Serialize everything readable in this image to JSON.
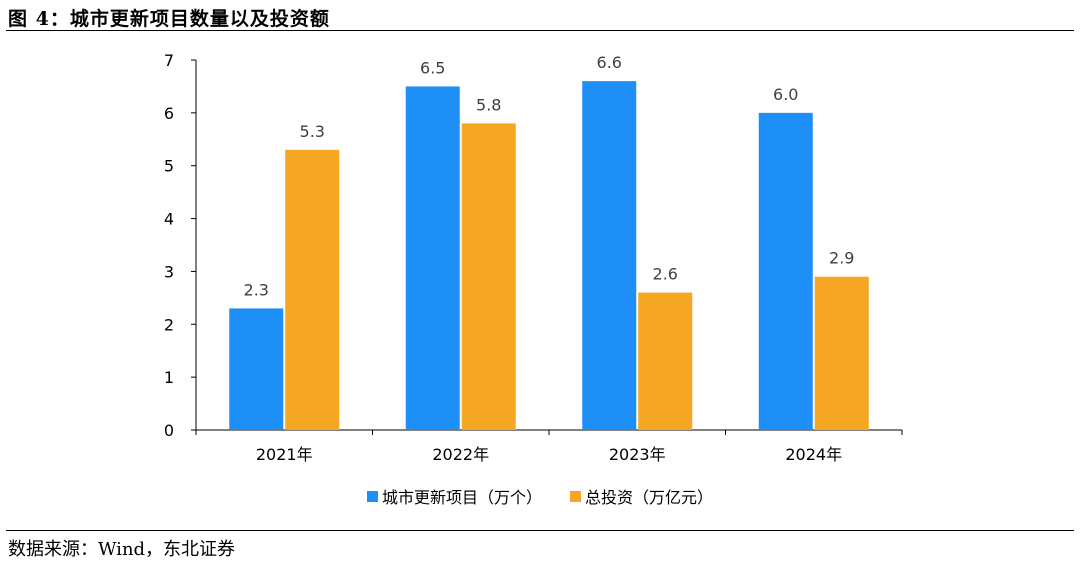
{
  "header": {
    "title": "图 4：城市更新项目数量以及投资额"
  },
  "footer": {
    "source": "数据来源：Wind，东北证券"
  },
  "colors": {
    "series_1": "#1E8FF7",
    "series_2": "#F5A623",
    "axis": "#000000"
  },
  "chart_data": {
    "type": "bar",
    "title": "",
    "xlabel": "",
    "ylabel": "",
    "categories": [
      "2021年",
      "2022年",
      "2023年",
      "2024年"
    ],
    "series": [
      {
        "name": "城市更新项目（万个）",
        "values": [
          2.3,
          6.5,
          6.6,
          6.0
        ],
        "labels": [
          "2.3",
          "6.5",
          "6.6",
          "6.0"
        ]
      },
      {
        "name": "总投资（万亿元）",
        "values": [
          5.3,
          5.8,
          2.6,
          2.9
        ],
        "labels": [
          "5.3",
          "5.8",
          "2.6",
          "2.9"
        ]
      }
    ],
    "ylim": [
      0,
      7
    ],
    "yticks": [
      "0",
      "1",
      "2",
      "3",
      "4",
      "5",
      "6",
      "7"
    ],
    "grid": false,
    "legend_position": "bottom"
  }
}
